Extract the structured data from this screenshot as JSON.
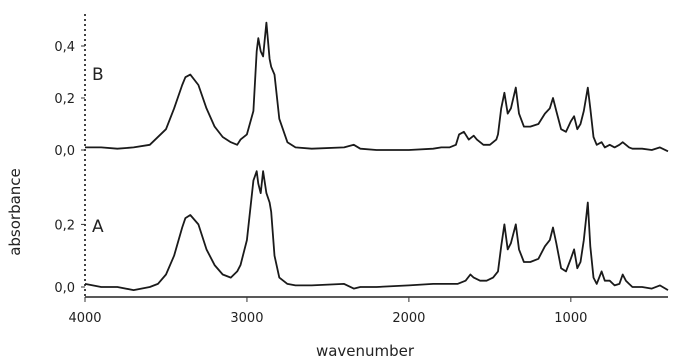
{
  "chart_data": {
    "type": "line",
    "title": "",
    "xlabel": "wavenumber",
    "ylabel": "absorbance",
    "xlim": [
      4000,
      400
    ],
    "x_reversed": true,
    "grid": false,
    "x_ticks": [
      {
        "value": 4000,
        "label": "4000"
      },
      {
        "value": 3000,
        "label": "3000"
      },
      {
        "value": 2000,
        "label": "2000"
      },
      {
        "value": 1000,
        "label": "1000"
      }
    ],
    "panels": [
      {
        "label": "B",
        "ylim": [
          -0.02,
          0.5
        ],
        "y_ticks": [
          {
            "value": 0.0,
            "label": "0,0"
          },
          {
            "value": 0.2,
            "label": "0,2"
          },
          {
            "value": 0.4,
            "label": "0,4"
          }
        ],
        "series": [
          {
            "x": [
              4000,
              3900,
              3800,
              3700,
              3600,
              3500,
              3450,
              3400,
              3380,
              3350,
              3300,
              3250,
              3200,
              3150,
              3100,
              3060,
              3040,
              3000,
              2960,
              2940,
              2930,
              2915,
              2900,
              2880,
              2860,
              2850,
              2830,
              2800,
              2750,
              2700,
              2600,
              2400,
              2340,
              2300,
              2200,
              2000,
              1850,
              1800,
              1750,
              1710,
              1690,
              1660,
              1630,
              1600,
              1580,
              1540,
              1500,
              1460,
              1450,
              1430,
              1410,
              1390,
              1370,
              1340,
              1320,
              1290,
              1250,
              1200,
              1160,
              1130,
              1110,
              1090,
              1060,
              1030,
              1000,
              980,
              960,
              940,
              920,
              895,
              880,
              860,
              840,
              810,
              790,
              760,
              730,
              700,
              680,
              660,
              640,
              620,
              560,
              500,
              450,
              400
            ],
            "y": [
              0.01,
              0.01,
              0.005,
              0.01,
              0.02,
              0.08,
              0.16,
              0.25,
              0.28,
              0.29,
              0.25,
              0.16,
              0.09,
              0.05,
              0.03,
              0.02,
              0.04,
              0.06,
              0.15,
              0.38,
              0.43,
              0.38,
              0.36,
              0.49,
              0.35,
              0.32,
              0.29,
              0.12,
              0.03,
              0.01,
              0.005,
              0.01,
              0.02,
              0.005,
              0.0,
              0.0,
              0.005,
              0.01,
              0.01,
              0.02,
              0.06,
              0.07,
              0.04,
              0.055,
              0.04,
              0.02,
              0.02,
              0.04,
              0.06,
              0.16,
              0.22,
              0.14,
              0.16,
              0.24,
              0.14,
              0.09,
              0.09,
              0.1,
              0.14,
              0.16,
              0.2,
              0.15,
              0.08,
              0.07,
              0.11,
              0.13,
              0.08,
              0.1,
              0.15,
              0.24,
              0.16,
              0.05,
              0.02,
              0.03,
              0.01,
              0.02,
              0.01,
              0.02,
              0.03,
              0.02,
              0.01,
              0.005,
              0.005,
              0.0,
              0.01,
              -0.005
            ]
          }
        ]
      },
      {
        "label": "A",
        "ylim": [
          -0.02,
          0.42
        ],
        "y_ticks": [
          {
            "value": 0.0,
            "label": "0,0"
          },
          {
            "value": 0.2,
            "label": "0,2"
          }
        ],
        "series": [
          {
            "x": [
              4000,
              3900,
              3800,
              3700,
              3600,
              3550,
              3500,
              3450,
              3400,
              3380,
              3350,
              3300,
              3250,
              3200,
              3150,
              3100,
              3060,
              3040,
              3000,
              2960,
              2940,
              2930,
              2915,
              2900,
              2880,
              2860,
              2850,
              2830,
              2800,
              2750,
              2700,
              2600,
              2400,
              2340,
              2300,
              2200,
              2000,
              1850,
              1800,
              1700,
              1650,
              1620,
              1600,
              1560,
              1520,
              1480,
              1450,
              1430,
              1410,
              1390,
              1370,
              1340,
              1320,
              1290,
              1250,
              1200,
              1160,
              1130,
              1110,
              1090,
              1060,
              1030,
              1000,
              980,
              960,
              940,
              920,
              895,
              880,
              860,
              840,
              810,
              790,
              760,
              730,
              700,
              680,
              660,
              640,
              620,
              560,
              500,
              450,
              400
            ],
            "y": [
              0.01,
              0.0,
              0.0,
              -0.01,
              0.0,
              0.01,
              0.04,
              0.1,
              0.19,
              0.22,
              0.23,
              0.2,
              0.12,
              0.07,
              0.04,
              0.03,
              0.05,
              0.07,
              0.15,
              0.34,
              0.37,
              0.33,
              0.3,
              0.37,
              0.3,
              0.27,
              0.24,
              0.1,
              0.03,
              0.01,
              0.005,
              0.005,
              0.01,
              -0.005,
              0.0,
              0.0,
              0.005,
              0.01,
              0.01,
              0.01,
              0.02,
              0.04,
              0.03,
              0.02,
              0.02,
              0.03,
              0.05,
              0.13,
              0.2,
              0.12,
              0.14,
              0.2,
              0.12,
              0.08,
              0.08,
              0.09,
              0.13,
              0.15,
              0.19,
              0.14,
              0.06,
              0.05,
              0.09,
              0.12,
              0.06,
              0.08,
              0.15,
              0.27,
              0.13,
              0.03,
              0.01,
              0.05,
              0.02,
              0.02,
              0.005,
              0.01,
              0.04,
              0.02,
              0.01,
              0.0,
              0.0,
              -0.005,
              0.005,
              -0.01
            ]
          }
        ]
      }
    ]
  }
}
